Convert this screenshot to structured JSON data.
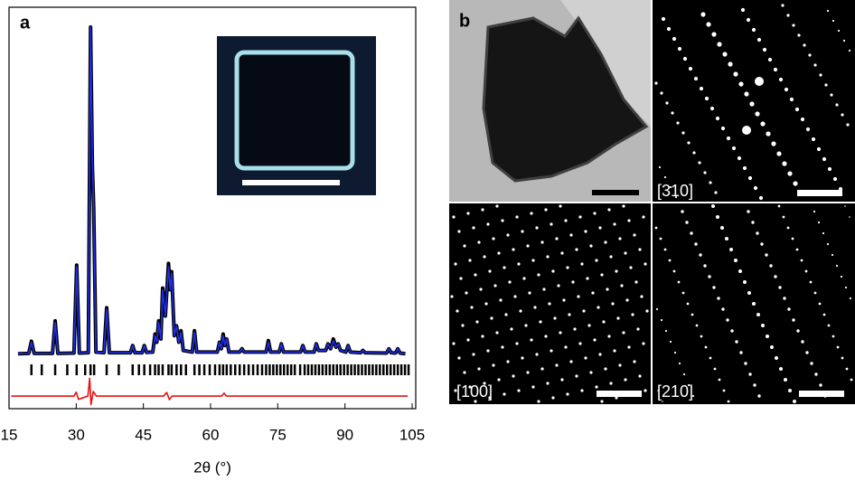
{
  "panels": {
    "a": "a",
    "b": "b"
  },
  "chart_data": {
    "type": "line",
    "xlabel": "2θ (°)",
    "xlim": [
      15,
      105
    ],
    "xticks": [
      15,
      30,
      45,
      60,
      75,
      90,
      105
    ],
    "ylim": [
      -15,
      100
    ],
    "x": [
      17,
      19.4,
      20,
      20.6,
      24.7,
      25.3,
      25.9,
      29.5,
      30.1,
      30.7,
      32.7,
      33.2,
      33.6,
      33.9,
      34.4,
      36.2,
      36.8,
      37.4,
      42.1,
      42.6,
      43.1,
      44.7,
      45.2,
      45.7,
      47.1,
      47.6,
      48.0,
      48.4,
      48.9,
      49.3,
      49.9,
      50.6,
      51.0,
      51.3,
      51.9,
      52.4,
      52.9,
      53.4,
      53.9,
      55.9,
      56.4,
      56.9,
      61.5,
      62.0,
      62.4,
      62.8,
      63.2,
      63.6,
      64.1,
      66.5,
      67.0,
      67.5,
      72.4,
      72.9,
      73.4,
      75.3,
      75.8,
      76.3,
      80.1,
      80.6,
      81.1,
      83.1,
      83.6,
      84.1,
      85.7,
      86.2,
      86.8,
      87.4,
      88.0,
      88.5,
      89.0,
      90.2,
      90.7,
      91.2,
      93.5,
      94.0,
      94.5,
      99.3,
      99.8,
      100.3,
      101.3,
      101.8,
      102.3,
      103.5
    ],
    "series": [
      {
        "color": "#000000",
        "values": [
          0.5,
          0.6,
          4.3,
          0.6,
          0.6,
          10.5,
          0.6,
          0.7,
          27.5,
          0.7,
          0.8,
          100,
          58,
          45,
          1,
          0.8,
          14.5,
          0.8,
          0.8,
          3,
          0.8,
          0.8,
          3,
          0.9,
          1,
          6.5,
          4,
          10.5,
          5,
          20.5,
          12,
          28,
          20,
          25.5,
          6,
          9,
          4,
          7.5,
          1.5,
          1,
          7.5,
          1,
          1,
          4,
          2,
          6.5,
          3,
          5,
          1,
          1,
          2,
          1,
          1,
          4.5,
          1,
          1,
          3.5,
          1,
          1,
          3,
          1,
          1,
          3.5,
          1.5,
          1.5,
          3.5,
          2,
          5,
          2.5,
          3.5,
          1.5,
          1,
          3,
          1,
          0.8,
          1.5,
          0.8,
          0.7,
          2,
          0.8,
          0.7,
          2,
          0.7,
          0.5
        ]
      },
      {
        "color": "#1f2fe8",
        "values": [
          0.5,
          0.6,
          4,
          0.6,
          0.6,
          10,
          0.6,
          0.7,
          27,
          0.7,
          0.8,
          100,
          60,
          45,
          1,
          0.8,
          14,
          0.8,
          0.8,
          3,
          0.8,
          0.8,
          3,
          0.9,
          1,
          6,
          4,
          10,
          5,
          20,
          12,
          27,
          20,
          25,
          6,
          9,
          4,
          7,
          1.5,
          1,
          7,
          1,
          1,
          4,
          2,
          6,
          3,
          5,
          1,
          1,
          2,
          1,
          1,
          4,
          1,
          1,
          3.5,
          1,
          1,
          3,
          1,
          1,
          3.5,
          1.5,
          1.5,
          3.5,
          2,
          4.5,
          2.5,
          3.5,
          1.5,
          1,
          3,
          1,
          0.8,
          1.5,
          0.8,
          0.7,
          2,
          0.8,
          0.7,
          2,
          0.7,
          0.5
        ]
      },
      {
        "color": "#e81010",
        "x": [
          15.5,
          29.5,
          30,
          30.5,
          32.6,
          33,
          33.3,
          33.8,
          34.5,
          49.5,
          50.2,
          50.8,
          51.4,
          62.5,
          63,
          63.5,
          104
        ],
        "values": [
          -12.4,
          -12.4,
          -11.2,
          -13.4,
          -12.4,
          -7,
          -15,
          -11,
          -12.4,
          -12.4,
          -11.3,
          -13.5,
          -12.4,
          -12.4,
          -11.5,
          -12.4,
          -12.4
        ]
      }
    ],
    "reflections": {
      "color": "#000000",
      "x": [
        20,
        22.3,
        25.3,
        28,
        30.1,
        32,
        33.2,
        34,
        36.8,
        39.5,
        42.6,
        44,
        45.2,
        46.5,
        47.6,
        48.4,
        49.3,
        50.6,
        51.3,
        52.4,
        53.4,
        54.5,
        56.4,
        57.5,
        58.6,
        59.8,
        61,
        62,
        62.8,
        63.6,
        64.5,
        65.5,
        66.5,
        67.5,
        68.5,
        69.5,
        70.5,
        71.5,
        72.4,
        73.2,
        74,
        74.8,
        75.6,
        76.4,
        77.2,
        78,
        78.8,
        80,
        81,
        81.8,
        82.6,
        83.4,
        84.2,
        85,
        85.8,
        86.6,
        87.4,
        88.2,
        89,
        89.8,
        90.6,
        91.4,
        92.2,
        93,
        93.8,
        94.6,
        95.4,
        96.2,
        97,
        97.8,
        98.6,
        99.4,
        100.2,
        101,
        101.8,
        102.6,
        103.4,
        104.2
      ]
    }
  },
  "images": {
    "zone_310": "[310]",
    "zone_100": "[100]",
    "zone_210": "[210]"
  }
}
